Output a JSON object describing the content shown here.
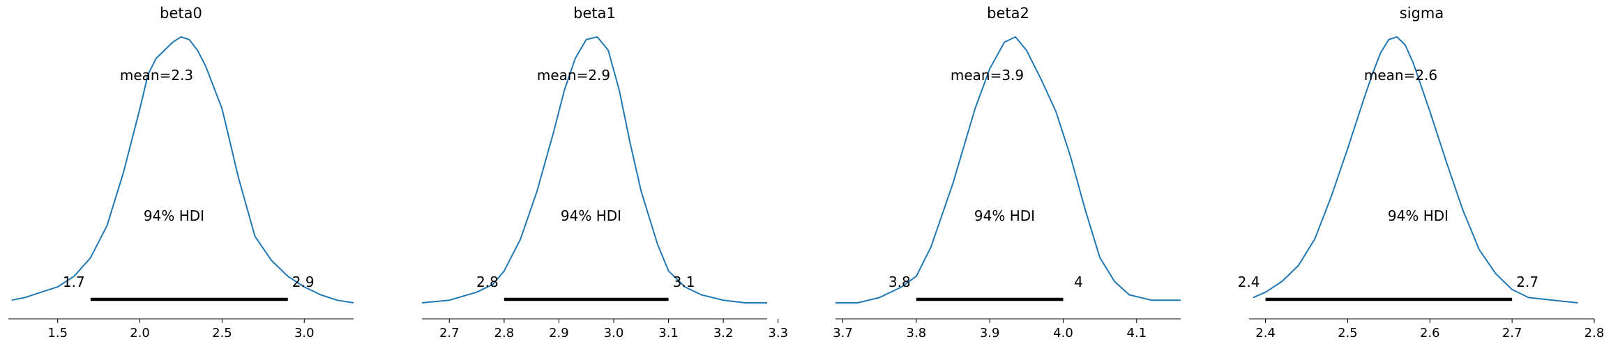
{
  "chart_data": [
    {
      "type": "density",
      "title": "beta0",
      "mean_label": "mean=2.3",
      "hdi_label": "94% HDI",
      "hdi": [
        1.7,
        2.9
      ],
      "hdi_low_label": "1.7",
      "hdi_high_label": "2.9",
      "xlim": [
        1.2,
        3.3
      ],
      "xticks": [
        1.5,
        2.0,
        2.5,
        3.0
      ],
      "xtick_labels": [
        "1.5",
        "2.0",
        "2.5",
        "3.0"
      ],
      "curve_color": "#1f77b4",
      "density": [
        [
          1.22,
          0.01
        ],
        [
          1.3,
          0.02
        ],
        [
          1.4,
          0.04
        ],
        [
          1.5,
          0.06
        ],
        [
          1.6,
          0.1
        ],
        [
          1.7,
          0.17
        ],
        [
          1.8,
          0.29
        ],
        [
          1.9,
          0.49
        ],
        [
          2.0,
          0.73
        ],
        [
          2.05,
          0.86
        ],
        [
          2.1,
          0.92
        ],
        [
          2.15,
          0.95
        ],
        [
          2.2,
          0.98
        ],
        [
          2.25,
          1.0
        ],
        [
          2.3,
          0.99
        ],
        [
          2.35,
          0.95
        ],
        [
          2.4,
          0.89
        ],
        [
          2.5,
          0.73
        ],
        [
          2.6,
          0.47
        ],
        [
          2.7,
          0.25
        ],
        [
          2.8,
          0.16
        ],
        [
          2.9,
          0.1
        ],
        [
          3.0,
          0.06
        ],
        [
          3.1,
          0.03
        ],
        [
          3.2,
          0.01
        ],
        [
          3.3,
          0.0
        ]
      ]
    },
    {
      "type": "density",
      "title": "beta1",
      "mean_label": "mean=2.9",
      "hdi_label": "94% HDI",
      "hdi": [
        2.8,
        3.1
      ],
      "hdi_low_label": "2.8",
      "hdi_high_label": "3.1",
      "xlim": [
        2.65,
        3.28
      ],
      "xticks": [
        2.7,
        2.8,
        2.9,
        3.0,
        3.1,
        3.2,
        3.3
      ],
      "xtick_labels": [
        "2.7",
        "2.8",
        "2.9",
        "3.0",
        "3.1",
        "3.2",
        "3.3"
      ],
      "curve_color": "#1f77b4",
      "density": [
        [
          2.65,
          0.0
        ],
        [
          2.7,
          0.01
        ],
        [
          2.75,
          0.04
        ],
        [
          2.78,
          0.07
        ],
        [
          2.8,
          0.12
        ],
        [
          2.83,
          0.24
        ],
        [
          2.86,
          0.42
        ],
        [
          2.89,
          0.64
        ],
        [
          2.91,
          0.8
        ],
        [
          2.93,
          0.92
        ],
        [
          2.95,
          0.99
        ],
        [
          2.97,
          1.0
        ],
        [
          2.99,
          0.95
        ],
        [
          3.01,
          0.8
        ],
        [
          3.03,
          0.6
        ],
        [
          3.05,
          0.42
        ],
        [
          3.08,
          0.22
        ],
        [
          3.1,
          0.12
        ],
        [
          3.13,
          0.06
        ],
        [
          3.16,
          0.03
        ],
        [
          3.2,
          0.01
        ],
        [
          3.24,
          0.0
        ],
        [
          3.28,
          0.0
        ]
      ]
    },
    {
      "type": "density",
      "title": "beta2",
      "mean_label": "mean=3.9",
      "hdi_label": "94% HDI",
      "hdi": [
        3.8,
        4.0
      ],
      "hdi_low_label": "3.8",
      "hdi_high_label": "4",
      "xlim": [
        3.69,
        4.16
      ],
      "xticks": [
        3.7,
        3.8,
        3.9,
        4.0,
        4.1
      ],
      "xtick_labels": [
        "3.7",
        "3.8",
        "3.9",
        "4.0",
        "4.1"
      ],
      "curve_color": "#1f77b4",
      "density": [
        [
          3.69,
          0.0
        ],
        [
          3.72,
          0.0
        ],
        [
          3.75,
          0.02
        ],
        [
          3.78,
          0.06
        ],
        [
          3.8,
          0.1
        ],
        [
          3.82,
          0.21
        ],
        [
          3.85,
          0.45
        ],
        [
          3.88,
          0.73
        ],
        [
          3.9,
          0.88
        ],
        [
          3.92,
          0.98
        ],
        [
          3.935,
          1.0
        ],
        [
          3.95,
          0.95
        ],
        [
          3.97,
          0.84
        ],
        [
          3.99,
          0.72
        ],
        [
          4.01,
          0.55
        ],
        [
          4.03,
          0.35
        ],
        [
          4.05,
          0.17
        ],
        [
          4.07,
          0.08
        ],
        [
          4.09,
          0.03
        ],
        [
          4.12,
          0.01
        ],
        [
          4.16,
          0.01
        ]
      ]
    },
    {
      "type": "density",
      "title": "sigma",
      "mean_label": "mean=2.6",
      "hdi_label": "94% HDI",
      "hdi": [
        2.4,
        2.7
      ],
      "hdi_low_label": "2.4",
      "hdi_high_label": "2.7",
      "xlim": [
        2.38,
        2.8
      ],
      "xticks": [
        2.4,
        2.5,
        2.6,
        2.7,
        2.8
      ],
      "xtick_labels": [
        "2.4",
        "2.5",
        "2.6",
        "2.7",
        "2.8"
      ],
      "curve_color": "#1f77b4",
      "density": [
        [
          2.385,
          0.02
        ],
        [
          2.4,
          0.04
        ],
        [
          2.42,
          0.08
        ],
        [
          2.44,
          0.14
        ],
        [
          2.46,
          0.24
        ],
        [
          2.48,
          0.4
        ],
        [
          2.5,
          0.58
        ],
        [
          2.52,
          0.77
        ],
        [
          2.53,
          0.86
        ],
        [
          2.54,
          0.94
        ],
        [
          2.55,
          0.99
        ],
        [
          2.56,
          1.0
        ],
        [
          2.57,
          0.97
        ],
        [
          2.58,
          0.9
        ],
        [
          2.6,
          0.72
        ],
        [
          2.62,
          0.53
        ],
        [
          2.64,
          0.35
        ],
        [
          2.66,
          0.2
        ],
        [
          2.68,
          0.11
        ],
        [
          2.7,
          0.05
        ],
        [
          2.72,
          0.02
        ],
        [
          2.75,
          0.01
        ],
        [
          2.78,
          0.0
        ]
      ]
    }
  ]
}
